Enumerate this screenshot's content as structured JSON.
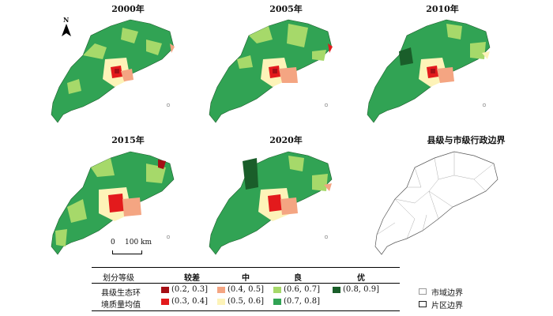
{
  "panels": [
    {
      "title": "2000年"
    },
    {
      "title": "2005年"
    },
    {
      "title": "2010年"
    },
    {
      "title": "2015年"
    },
    {
      "title": "2020年"
    },
    {
      "title": "县级与市级行政边界"
    }
  ],
  "north_label": "N",
  "scale_bar": {
    "start": "0",
    "end": "100 km"
  },
  "legend": {
    "header_label": "划分等级",
    "levels": [
      "较差",
      "中",
      "良",
      "优"
    ],
    "row_label_line1": "县级生态环",
    "row_label_line2": "境质量均值",
    "classes": [
      {
        "range": "(0.2, 0.3]",
        "color": "#a50f15"
      },
      {
        "range": "(0.3, 0.4]",
        "color": "#e31a1c"
      },
      {
        "range": "(0.4, 0.5]",
        "color": "#f4a582"
      },
      {
        "range": "(0.5, 0.6]",
        "color": "#fdf3b8"
      },
      {
        "range": "(0.6, 0.7]",
        "color": "#a6d96a"
      },
      {
        "range": "(0.7, 0.8]",
        "color": "#31a354"
      },
      {
        "range": "(0.8, 0.9]",
        "color": "#1a5e2a"
      }
    ]
  },
  "boundary_legend": {
    "city": "市域边界",
    "district": "片区边界"
  }
}
